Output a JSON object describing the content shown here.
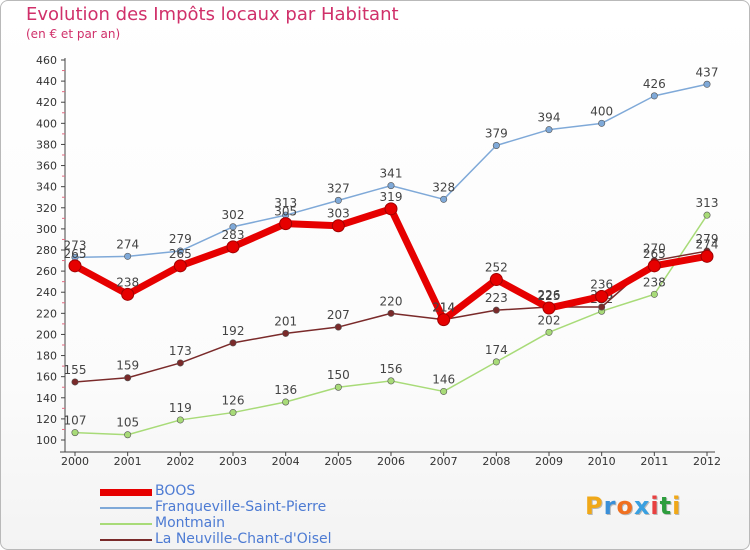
{
  "title": "Evolution des Impôts locaux par Habitant",
  "subtitle": "(en € et par an)",
  "logo": {
    "text": "Proxiti",
    "letter_colors": [
      "#f0a818",
      "#3a8fd8",
      "#f07020",
      "#39a0e0",
      "#e84040",
      "#2e9e3e",
      "#f0a818"
    ]
  },
  "chart_data": {
    "type": "line",
    "title": "Evolution des Impôts locaux par Habitant",
    "subtitle": "(en € et par an)",
    "xlabel": "",
    "ylabel": "",
    "x": [
      "2000",
      "2001",
      "2002",
      "2003",
      "2004",
      "2005",
      "2006",
      "2007",
      "2008",
      "2009",
      "2010",
      "2011",
      "2012"
    ],
    "ylim": [
      100,
      460
    ],
    "yticks": [
      100,
      120,
      140,
      160,
      180,
      200,
      220,
      240,
      260,
      280,
      300,
      320,
      340,
      360,
      380,
      400,
      420,
      440,
      460
    ],
    "grid": false,
    "legend": "bottom-left",
    "series": [
      {
        "name": "BOOS",
        "color": "#e60000",
        "emphasis": true,
        "values": [
          265,
          238,
          265,
          283,
          305,
          303,
          319,
          214,
          252,
          225,
          236,
          265,
          274
        ]
      },
      {
        "name": "Franqueville-Saint-Pierre",
        "color": "#7fa9d8",
        "values": [
          273,
          274,
          279,
          302,
          313,
          327,
          341,
          328,
          379,
          394,
          400,
          426,
          437
        ]
      },
      {
        "name": "Montmain",
        "color": "#a8db78",
        "values": [
          107,
          105,
          119,
          126,
          136,
          150,
          156,
          146,
          174,
          202,
          222,
          238,
          313
        ]
      },
      {
        "name": "La Neuville-Chant-d'Oisel",
        "color": "#7a2a2a",
        "values": [
          155,
          159,
          173,
          192,
          201,
          207,
          220,
          214,
          223,
          226,
          226,
          270,
          279
        ]
      }
    ]
  }
}
